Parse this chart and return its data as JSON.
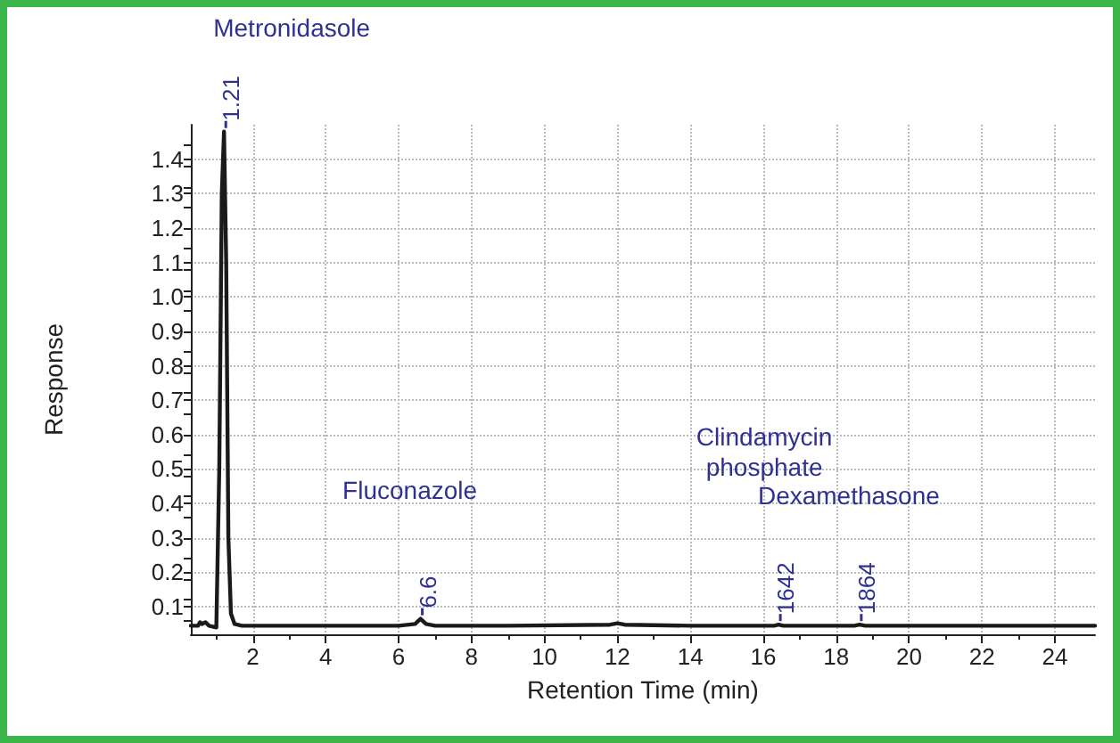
{
  "chart_data": {
    "type": "line",
    "xlabel": "Retention Time (min)",
    "ylabel": "Response",
    "x": [
      0.3,
      0.5,
      0.55,
      0.6,
      0.7,
      0.8,
      1.0,
      1.08,
      1.15,
      1.21,
      1.27,
      1.33,
      1.4,
      1.5,
      1.7,
      2.0,
      4.0,
      6.0,
      6.45,
      6.6,
      6.75,
      7.0,
      9.0,
      11.8,
      12.0,
      12.2,
      14.0,
      16.3,
      16.42,
      16.55,
      18.5,
      18.64,
      18.8,
      21.0,
      25.1
    ],
    "series": [
      {
        "color": "#1a1a1a",
        "values": [
          0.045,
          0.045,
          0.055,
          0.05,
          0.055,
          0.045,
          0.04,
          0.5,
          1.3,
          1.48,
          1.1,
          0.3,
          0.08,
          0.05,
          0.045,
          0.045,
          0.045,
          0.045,
          0.05,
          0.065,
          0.05,
          0.045,
          0.045,
          0.048,
          0.052,
          0.048,
          0.045,
          0.045,
          0.048,
          0.045,
          0.045,
          0.048,
          0.045,
          0.045,
          0.045
        ]
      }
    ],
    "annotations": [
      {
        "text": "1.21",
        "x": 1.21,
        "y": 1.48
      },
      {
        "text": "6.6",
        "x": 6.6,
        "y": 0.065
      },
      {
        "text": "1642",
        "x": 16.42,
        "y": 0.048
      },
      {
        "text": "1864",
        "x": 18.64,
        "y": 0.048
      },
      "Metronidasole",
      "Fluconazole",
      "Clindamycin\nphosphate",
      "Dexamethasone"
    ],
    "xlim": [
      0.3,
      25.1
    ],
    "ylim": [
      0.02,
      1.5
    ],
    "xticks": [
      2,
      4,
      6,
      8,
      10,
      12,
      14,
      16,
      18,
      20,
      22,
      24
    ],
    "yticks": [
      0.1,
      0.2,
      0.3,
      0.4,
      0.5,
      0.6,
      0.7,
      0.8,
      0.9,
      {
        "value": 1.0,
        "label": "1.0"
      },
      1.1,
      1.2,
      1.3,
      1.4
    ],
    "grid": true,
    "marker": "none",
    "line_style": "solid"
  }
}
